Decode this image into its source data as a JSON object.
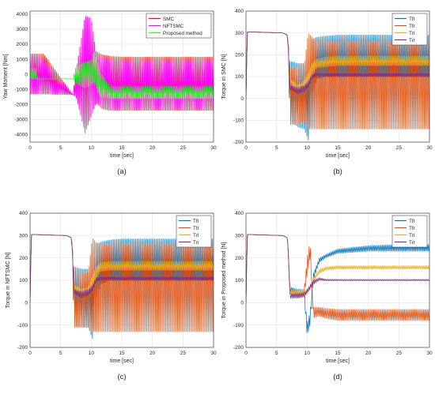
{
  "colors": {
    "SMC": "#ff0000",
    "NFTSMC": "#ff00ff",
    "Proposed method": "#33ee33",
    "Tfl": "#0072bd",
    "Tfr": "#d95319",
    "Trl": "#edb120",
    "Trr": "#7e2f8e"
  },
  "chart_data": [
    {
      "type": "line",
      "caption": "(a)",
      "xlabel": "time [sec]",
      "ylabel": "Yaw Moment [Nm]",
      "xlim": [
        0,
        30
      ],
      "ylim": [
        -4500,
        4200
      ],
      "xticks": [
        0,
        5,
        10,
        15,
        20,
        25,
        30
      ],
      "yticks": [
        -4000,
        -3000,
        -2000,
        -1000,
        0,
        1000,
        2000,
        3000,
        4000
      ],
      "grid": true,
      "legend": "top-right",
      "series": [
        {
          "name": "SMC",
          "color": "#ff0000",
          "x": [
            0,
            0.3,
            2,
            2.2,
            7,
            7.5,
            9,
            10,
            10.8,
            11.8,
            13,
            15,
            20,
            25,
            30
          ],
          "lower": [
            -1300,
            -1300,
            -1300,
            -1300,
            -1350,
            -1500,
            -3600,
            -2800,
            -1900,
            -2300,
            -2400,
            -2400,
            -2400,
            -2400,
            -2400
          ],
          "upper": [
            1350,
            1350,
            1350,
            1350,
            -1350,
            200,
            3800,
            3700,
            1500,
            1300,
            1200,
            1150,
            1150,
            1150,
            1150
          ]
        },
        {
          "name": "NFTSMC",
          "color": "#ff00ff",
          "x": [
            0,
            0.3,
            1,
            1.3,
            7,
            7.5,
            9,
            10,
            10.8,
            11.8,
            13,
            15,
            20,
            25,
            30
          ],
          "lower": [
            -1300,
            -1300,
            -1300,
            -1300,
            -1350,
            -1500,
            -3900,
            -2800,
            -1900,
            -2200,
            -2300,
            -2300,
            -2300,
            -2300,
            -2300
          ],
          "upper": [
            1300,
            1300,
            1300,
            1300,
            -1350,
            200,
            3900,
            3700,
            1500,
            1100,
            900,
            850,
            850,
            850,
            850
          ]
        },
        {
          "name": "Proposed method",
          "color": "#33ee33",
          "x": [
            0,
            0.3,
            1,
            1.2,
            7,
            7.5,
            9,
            10,
            10.5,
            11.5,
            13,
            15,
            20,
            25,
            30
          ],
          "lower": [
            -300,
            -300,
            -300,
            -300,
            -300,
            -600,
            -900,
            -700,
            -500,
            -1500,
            -1600,
            -1600,
            -1600,
            -1600,
            -1600
          ],
          "upper": [
            400,
            400,
            400,
            -300,
            -300,
            500,
            800,
            900,
            1600,
            100,
            -800,
            -800,
            -800,
            -800,
            -800
          ]
        }
      ]
    },
    {
      "type": "line",
      "caption": "(b)",
      "xlabel": "time [sec]",
      "ylabel": "Torque in SMC [N]",
      "xlim": [
        0,
        30
      ],
      "ylim": [
        -200,
        400
      ],
      "xticks": [
        0,
        5,
        10,
        15,
        20,
        25,
        30
      ],
      "yticks": [
        -200,
        -100,
        0,
        100,
        200,
        300,
        400
      ],
      "grid": true,
      "legend": "top-right",
      "series": [
        {
          "name": "Tfl",
          "color": "#0072bd",
          "x": [
            0,
            0.2,
            6,
            6.8,
            7.2,
            8.5,
            9.5,
            10.2,
            10.8,
            11.5,
            13,
            15,
            20,
            25,
            30
          ],
          "lower": [
            0,
            305,
            300,
            290,
            -100,
            -130,
            -140,
            -190,
            -50,
            90,
            100,
            100,
            100,
            100,
            100
          ],
          "upper": [
            0,
            305,
            300,
            290,
            170,
            160,
            160,
            80,
            270,
            280,
            285,
            290,
            290,
            290,
            290
          ]
        },
        {
          "name": "Tfr",
          "color": "#d95319",
          "x": [
            0,
            0.2,
            6,
            6.8,
            7.2,
            8.5,
            9.5,
            10.2,
            10.8,
            11.5,
            13,
            15,
            20,
            25,
            30
          ],
          "lower": [
            0,
            305,
            300,
            290,
            -120,
            -120,
            -110,
            -140,
            -140,
            -140,
            -140,
            -140,
            -140,
            -140,
            -140
          ],
          "upper": [
            0,
            305,
            300,
            290,
            140,
            140,
            150,
            300,
            280,
            260,
            260,
            260,
            260,
            260,
            260
          ]
        },
        {
          "name": "Trl",
          "color": "#edb120",
          "x": [
            0,
            0.2,
            6,
            6.8,
            7.2,
            8.5,
            9.5,
            10.2,
            10.8,
            11.5,
            13,
            15,
            20,
            25,
            30
          ],
          "lower": [
            0,
            305,
            300,
            290,
            70,
            20,
            30,
            60,
            100,
            140,
            145,
            150,
            150,
            150,
            150
          ],
          "upper": [
            0,
            305,
            300,
            290,
            90,
            60,
            80,
            120,
            160,
            180,
            190,
            195,
            195,
            195,
            195
          ]
        },
        {
          "name": "Trr",
          "color": "#7e2f8e",
          "x": [
            0,
            0.2,
            6,
            6.8,
            7.2,
            8.5,
            9.5,
            10.2,
            10.8,
            11.5,
            13,
            15,
            20,
            25,
            30
          ],
          "lower": [
            0,
            305,
            300,
            290,
            40,
            20,
            30,
            50,
            90,
            100,
            100,
            100,
            100,
            100,
            100
          ],
          "upper": [
            0,
            305,
            300,
            290,
            60,
            50,
            60,
            80,
            110,
            115,
            115,
            115,
            115,
            115,
            115
          ]
        }
      ]
    },
    {
      "type": "line",
      "caption": "(c)",
      "xlabel": "time [sec]",
      "ylabel": "Torque in NFTSMC [N]",
      "xlim": [
        0,
        30
      ],
      "ylim": [
        -200,
        400
      ],
      "xticks": [
        0,
        5,
        10,
        15,
        20,
        25,
        30
      ],
      "yticks": [
        -200,
        -100,
        0,
        100,
        200,
        300,
        400
      ],
      "grid": true,
      "legend": "top-right",
      "series": [
        {
          "name": "Tfl",
          "color": "#0072bd",
          "x": [
            0,
            0.2,
            6,
            6.8,
            7.2,
            8.5,
            9.5,
            10.2,
            10.8,
            11.5,
            13,
            15,
            20,
            25,
            30
          ],
          "lower": [
            0,
            305,
            300,
            290,
            -100,
            -110,
            -110,
            -160,
            -60,
            80,
            100,
            100,
            100,
            100,
            100
          ],
          "upper": [
            0,
            305,
            300,
            290,
            160,
            150,
            150,
            60,
            260,
            270,
            280,
            285,
            285,
            285,
            285
          ]
        },
        {
          "name": "Tfr",
          "color": "#d95319",
          "x": [
            0,
            0.2,
            6,
            6.8,
            7.2,
            8.5,
            9.5,
            10.2,
            10.8,
            11.5,
            13,
            15,
            20,
            25,
            30
          ],
          "lower": [
            0,
            305,
            300,
            290,
            -110,
            -110,
            -110,
            -130,
            -130,
            -130,
            -130,
            -130,
            -130,
            -130,
            -130
          ],
          "upper": [
            0,
            305,
            300,
            290,
            130,
            130,
            140,
            290,
            270,
            260,
            260,
            260,
            260,
            260,
            260
          ]
        },
        {
          "name": "Trl",
          "color": "#edb120",
          "x": [
            0,
            0.2,
            6,
            6.8,
            7.2,
            8.5,
            9.5,
            10.2,
            10.8,
            11.5,
            13,
            15,
            20,
            25,
            30
          ],
          "lower": [
            0,
            305,
            300,
            290,
            60,
            20,
            30,
            60,
            110,
            140,
            145,
            145,
            145,
            145,
            145
          ],
          "upper": [
            0,
            305,
            300,
            290,
            80,
            60,
            70,
            120,
            160,
            180,
            185,
            185,
            185,
            185,
            185
          ]
        },
        {
          "name": "Trr",
          "color": "#7e2f8e",
          "x": [
            0,
            0.2,
            6,
            6.8,
            7.2,
            8.5,
            9.5,
            10.2,
            10.8,
            11.5,
            13,
            15,
            20,
            25,
            30
          ],
          "lower": [
            0,
            305,
            300,
            290,
            40,
            20,
            30,
            50,
            95,
            100,
            100,
            100,
            100,
            100,
            100
          ],
          "upper": [
            0,
            305,
            300,
            290,
            60,
            50,
            60,
            80,
            110,
            115,
            115,
            115,
            115,
            115,
            115
          ]
        }
      ]
    },
    {
      "type": "line",
      "caption": "(d)",
      "xlabel": "time [sec]",
      "ylabel": "Torque in Proposed method [N]",
      "xlim": [
        0,
        30
      ],
      "ylim": [
        -200,
        400
      ],
      "xticks": [
        0,
        5,
        10,
        15,
        20,
        25,
        30
      ],
      "yticks": [
        -200,
        -100,
        0,
        100,
        200,
        300,
        400
      ],
      "grid": true,
      "legend": "top-right",
      "series": [
        {
          "name": "Tfl",
          "color": "#0072bd",
          "x": [
            0,
            0.2,
            6,
            6.8,
            7.2,
            8.5,
            9.5,
            10,
            10.5,
            11,
            12,
            13,
            15,
            20,
            25,
            30
          ],
          "lower": [
            0,
            305,
            300,
            290,
            50,
            20,
            30,
            -150,
            -100,
            100,
            180,
            200,
            220,
            230,
            230,
            230
          ],
          "upper": [
            0,
            305,
            300,
            290,
            70,
            60,
            60,
            -90,
            -40,
            130,
            200,
            215,
            240,
            255,
            260,
            260
          ]
        },
        {
          "name": "Tfr",
          "color": "#d95319",
          "x": [
            0,
            0.2,
            6,
            6.8,
            7.2,
            8.5,
            9.5,
            10,
            10.5,
            11,
            12,
            13,
            15,
            20,
            25,
            30
          ],
          "lower": [
            0,
            305,
            300,
            290,
            40,
            20,
            30,
            120,
            200,
            -70,
            -60,
            -70,
            -80,
            -80,
            -80,
            -80
          ],
          "upper": [
            0,
            305,
            300,
            290,
            60,
            50,
            60,
            200,
            280,
            -20,
            -20,
            -25,
            -30,
            -30,
            -30,
            -30
          ]
        },
        {
          "name": "Trl",
          "color": "#edb120",
          "x": [
            0,
            0.2,
            6,
            6.8,
            7.2,
            8.5,
            9.5,
            10,
            10.5,
            11,
            12,
            13,
            15,
            20,
            25,
            30
          ],
          "lower": [
            0,
            305,
            300,
            290,
            40,
            20,
            30,
            40,
            60,
            90,
            130,
            145,
            150,
            150,
            150,
            150
          ],
          "upper": [
            0,
            305,
            300,
            290,
            60,
            50,
            60,
            60,
            80,
            110,
            150,
            160,
            165,
            165,
            165,
            165
          ]
        },
        {
          "name": "Trr",
          "color": "#7e2f8e",
          "x": [
            0,
            0.2,
            6,
            6.8,
            7.2,
            8.5,
            9.5,
            10,
            10.5,
            11,
            12,
            13,
            15,
            20,
            25,
            30
          ],
          "lower": [
            0,
            305,
            300,
            290,
            20,
            20,
            25,
            40,
            60,
            80,
            100,
            98,
            98,
            98,
            98,
            98
          ],
          "upper": [
            0,
            305,
            300,
            290,
            40,
            40,
            45,
            60,
            80,
            100,
            112,
            105,
            104,
            104,
            104,
            104
          ]
        }
      ]
    }
  ]
}
